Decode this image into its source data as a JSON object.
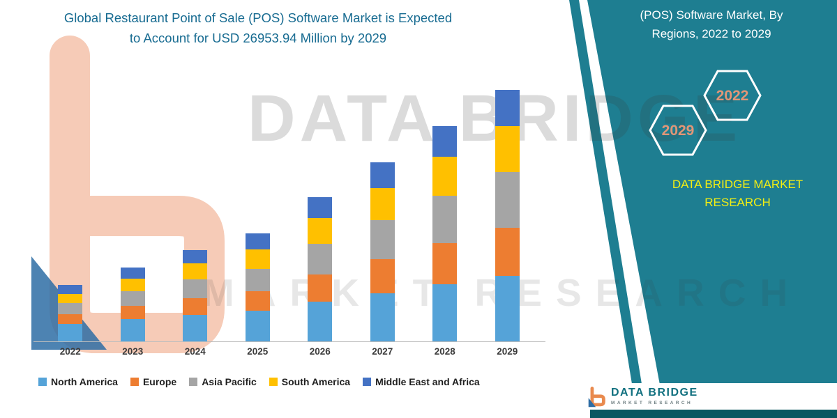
{
  "colors": {
    "teal_panel": "#1e7e91",
    "title_text": "#176b91",
    "brand_yellow": "#f4ef12",
    "hexagon_year": "#e29677",
    "bottom_bar": "#0a5761",
    "logo_orange": "#e98a4e",
    "watermark_salmon": "#eb8c5f"
  },
  "header": {
    "title_line1": "Global Restaurant Point of Sale (POS) Software Market is Expected",
    "title_line2": "to Account for USD 26953.94 Million by 2029"
  },
  "side_panel": {
    "heading_line1": "(POS) Software Market, By",
    "heading_line2": "Regions, 2022 to 2029",
    "hexagons": [
      "2029",
      "2022"
    ],
    "brand_line1": "DATA BRIDGE MARKET",
    "brand_line2": "RESEARCH"
  },
  "watermark": {
    "line1": "DATA BRIDGE",
    "line2": "MARKET RESEARCH"
  },
  "footer_logo": {
    "name": "DATA BRIDGE",
    "subtitle": "MARKET RESEARCH"
  },
  "chart_data": {
    "type": "bar",
    "stacked": true,
    "title": "Global Restaurant Point of Sale (POS) Software Market is Expected to Account for USD 26953.94 Million by 2029",
    "unit": "USD Million",
    "xlabel": "",
    "ylabel": "",
    "ylim": [
      0,
      28700
    ],
    "grid": false,
    "legend_position": "bottom",
    "categories": [
      "2022",
      "2023",
      "2024",
      "2025",
      "2026",
      "2027",
      "2028",
      "2029"
    ],
    "series": [
      {
        "name": "North America",
        "color": "#55a3d8",
        "values": [
          1880,
          2380,
          2850,
          3280,
          4260,
          5180,
          6130,
          7050
        ]
      },
      {
        "name": "Europe",
        "color": "#ed7d31",
        "values": [
          1060,
          1430,
          1800,
          2130,
          2900,
          3620,
          4400,
          5150
        ]
      },
      {
        "name": "Asia Pacific",
        "color": "#a5a5a5",
        "values": [
          1180,
          1590,
          2000,
          2400,
          3300,
          4180,
          5100,
          6000
        ]
      },
      {
        "name": "South America",
        "color": "#ffc000",
        "values": [
          990,
          1340,
          1700,
          2030,
          2750,
          3430,
          4170,
          4900
        ]
      },
      {
        "name": "Middle East and Africa",
        "color": "#4472c4",
        "values": [
          930,
          1188,
          1465,
          1712,
          2268,
          2767,
          3303,
          3853.94
        ]
      }
    ],
    "totals": [
      6040,
      7928,
      9815,
      11552,
      15478,
      19177,
      23103,
      26953.94
    ]
  }
}
